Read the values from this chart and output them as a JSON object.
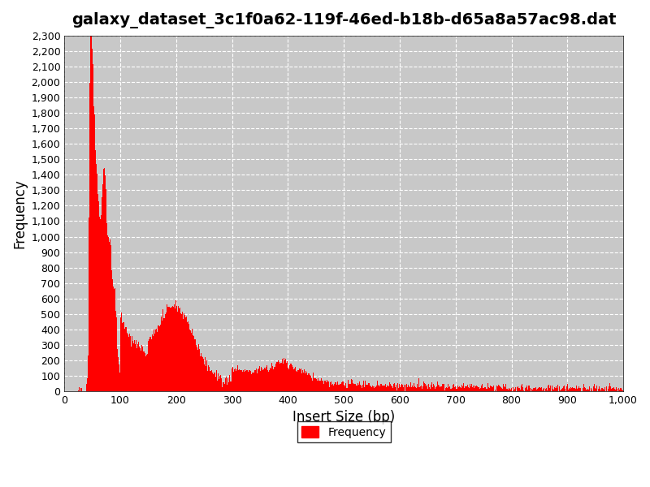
{
  "title": "galaxy_dataset_3c1f0a62-119f-46ed-b18b-d65a8a57ac98.dat",
  "xlabel": "Insert Size (bp)",
  "ylabel": "Frequency",
  "xlim": [
    0,
    1000
  ],
  "ylim": [
    0,
    2300
  ],
  "bar_color": "#ff0000",
  "background_color": "#c8c8c8",
  "grid_color": "white",
  "legend_label": "Frequency",
  "title_fontsize": 14,
  "axis_label_fontsize": 12
}
